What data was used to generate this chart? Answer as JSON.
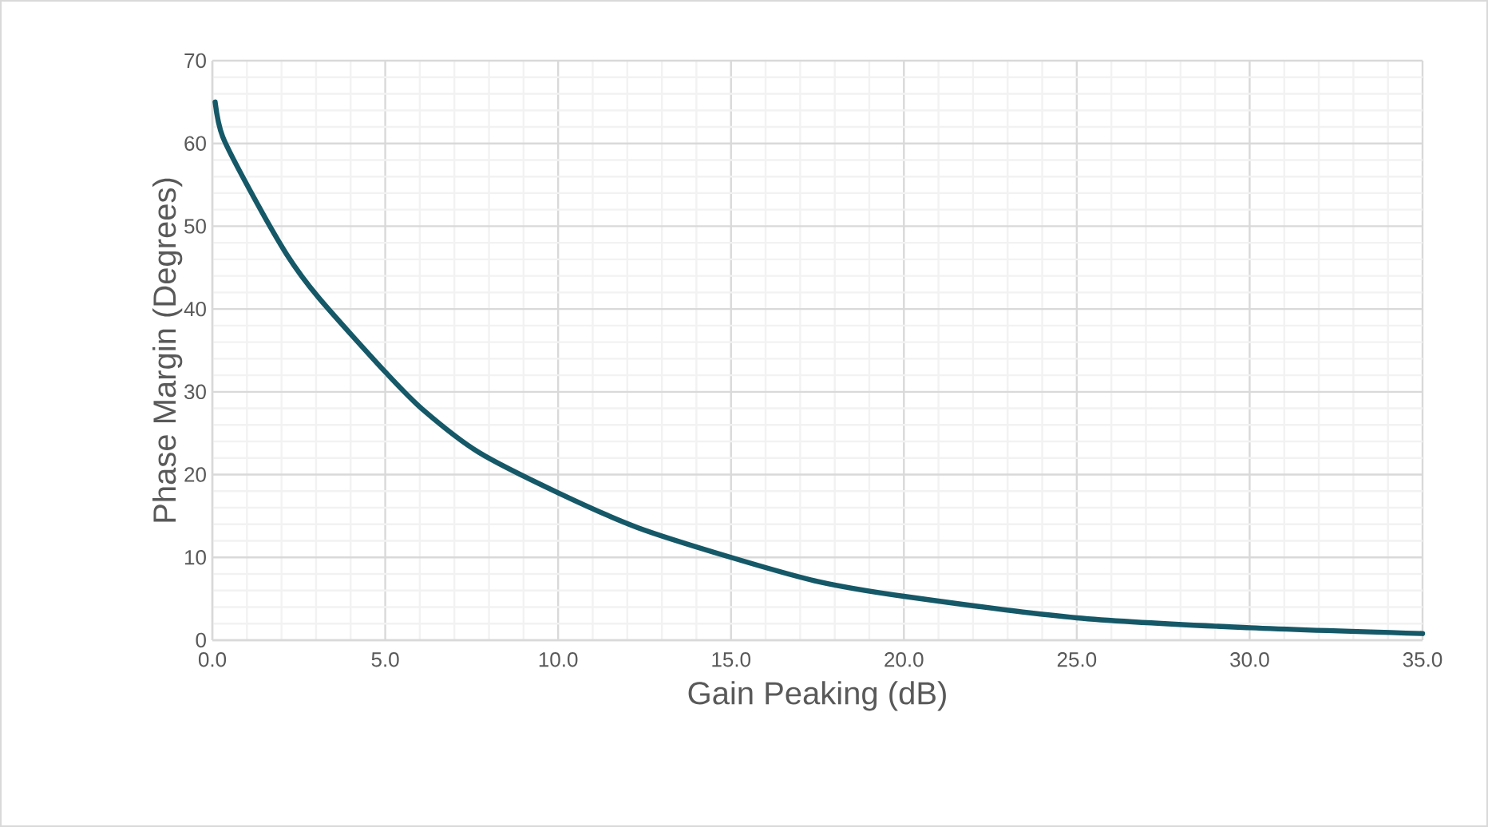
{
  "chart_data": {
    "type": "line",
    "xlabel": "Gain Peaking (dB)",
    "ylabel": "Phase Margin (Degrees)",
    "x": [
      0.08,
      0.3,
      1.08,
      2.15,
      3.07,
      5.0,
      6.1,
      7.7,
      10.0,
      12.3,
      15.0,
      17.5,
      20.0,
      25.0,
      30.0,
      35.0
    ],
    "values": [
      65,
      60.8,
      54.4,
      46.6,
      41.4,
      32.4,
      27.8,
      22.7,
      17.8,
      13.6,
      10.0,
      7.1,
      5.3,
      2.7,
      1.5,
      0.8
    ],
    "color": "#155867",
    "xlim": [
      0,
      35
    ],
    "ylim": [
      0,
      70
    ],
    "xticks": [
      {
        "value": 0,
        "label": "0.0"
      },
      {
        "value": 5,
        "label": "5.0"
      },
      {
        "value": 10,
        "label": "10.0"
      },
      {
        "value": 15,
        "label": "15.0"
      },
      {
        "value": 20,
        "label": "20.0"
      },
      {
        "value": 25,
        "label": "25.0"
      },
      {
        "value": 30,
        "label": "30.0"
      },
      {
        "value": 35,
        "label": "35.0"
      }
    ],
    "yticks": [
      0,
      10,
      20,
      30,
      40,
      50,
      60,
      70
    ],
    "grid": true,
    "marker": "none",
    "line_style": "solid"
  }
}
